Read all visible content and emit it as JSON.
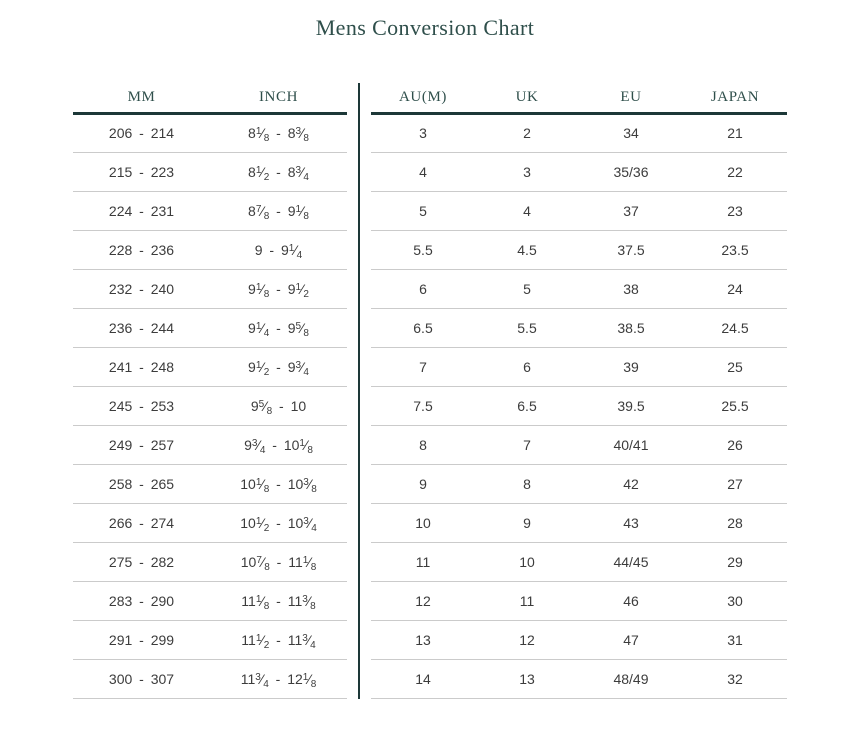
{
  "title": "Mens Conversion Chart",
  "left_table_headers": [
    "MM",
    "INCH"
  ],
  "right_table_headers": [
    "AU(M)",
    "UK",
    "EU",
    "JAPAN"
  ],
  "colors": {
    "accent_text": "#2f4f4b",
    "heavy_line": "#1d3838",
    "row_separator": "#cbcbcb",
    "body_text": "#3c3c3c"
  },
  "chart_data": {
    "type": "table",
    "title": "Mens Conversion Chart",
    "columns": [
      "MM",
      "INCH",
      "AU(M)",
      "UK",
      "EU",
      "JAPAN"
    ],
    "rows": [
      [
        "206 - 214",
        "8 1/8 - 8 3/8",
        "3",
        "2",
        "34",
        "21"
      ],
      [
        "215 - 223",
        "8 1/2 - 8 3/4",
        "4",
        "3",
        "35/36",
        "22"
      ],
      [
        "224 - 231",
        "8 7/8 - 9 1/8",
        "5",
        "4",
        "37",
        "23"
      ],
      [
        "228 - 236",
        "9 - 9 1/4",
        "5.5",
        "4.5",
        "37.5",
        "23.5"
      ],
      [
        "232 - 240",
        "9 1/8 - 9 1/2",
        "6",
        "5",
        "38",
        "24"
      ],
      [
        "236 - 244",
        "9 1/4 - 9 5/8",
        "6.5",
        "5.5",
        "38.5",
        "24.5"
      ],
      [
        "241 - 248",
        "9 1/2 - 9 3/4",
        "7",
        "6",
        "39",
        "25"
      ],
      [
        "245 - 253",
        "9 5/8 - 10",
        "7.5",
        "6.5",
        "39.5",
        "25.5"
      ],
      [
        "249 - 257",
        "9 3/4 - 10 1/8",
        "8",
        "7",
        "40/41",
        "26"
      ],
      [
        "258 - 265",
        "10 1/8 - 10 3/8",
        "9",
        "8",
        "42",
        "27"
      ],
      [
        "266 - 274",
        "10 1/2 - 10 3/4",
        "10",
        "9",
        "43",
        "28"
      ],
      [
        "275 - 282",
        "10 7/8 - 11 1/8",
        "11",
        "10",
        "44/45",
        "29"
      ],
      [
        "283 - 290",
        "11 1/8 - 11 3/8",
        "12",
        "11",
        "46",
        "30"
      ],
      [
        "291 - 299",
        "11 1/2 - 11 3/4",
        "13",
        "12",
        "47",
        "31"
      ],
      [
        "300 - 307",
        "11 3/4 - 12 1/8",
        "14",
        "13",
        "48/49",
        "32"
      ]
    ]
  }
}
